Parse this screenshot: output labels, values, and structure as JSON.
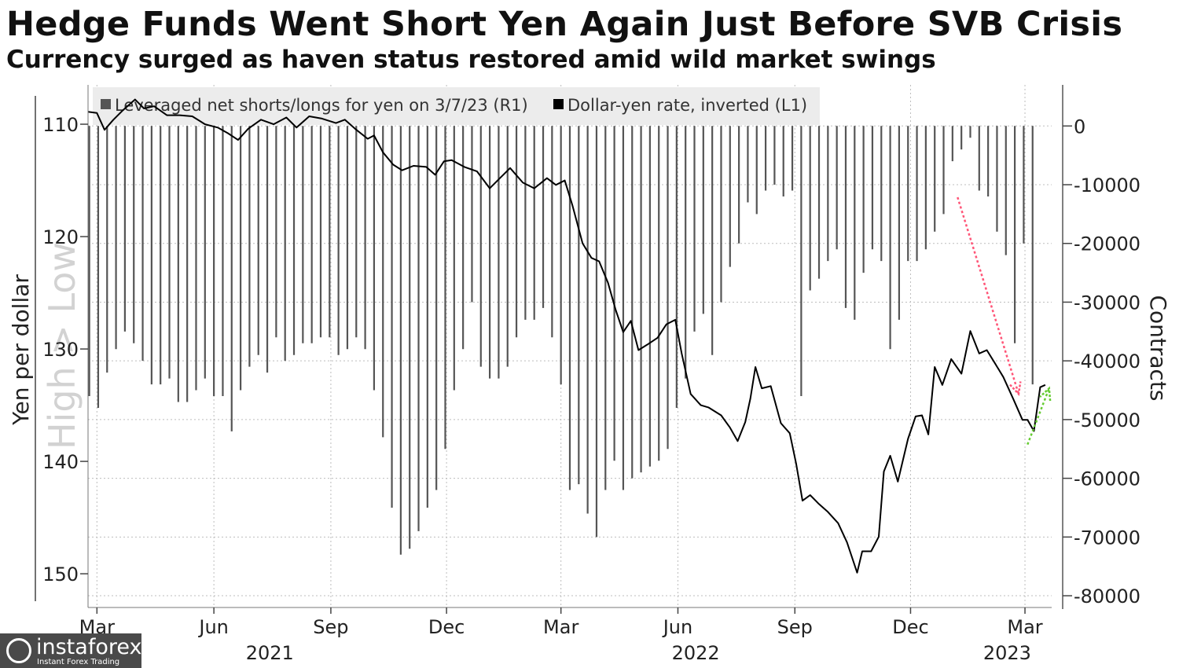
{
  "title": "Hedge Funds Went Short Yen Again Just Before SVB Crisis",
  "subtitle": "Currency surged as haven status restored amid wild market swings",
  "logo": {
    "name": "instaforex",
    "tagline": "Instant Forex Trading"
  },
  "colors": {
    "line": "#000000",
    "bars": "#555555",
    "grid": "#bdbdbd",
    "legend_bg": "#ececec",
    "arrow_down": "#ff5577",
    "arrow_up": "#66cc33"
  },
  "chart_data": {
    "type": "line+bar",
    "left_axis": {
      "title": "Yen per dollar",
      "inverted": true,
      "range": [
        106.5,
        153
      ],
      "ticks": [
        110,
        120,
        130,
        140,
        150
      ]
    },
    "right_axis": {
      "title": "Contracts",
      "range": [
        -82000,
        7000
      ],
      "ticks": [
        0,
        -10000,
        -20000,
        -30000,
        -40000,
        -50000,
        -60000,
        -70000,
        -80000
      ]
    },
    "watermark": "High > Low",
    "x_ticks": [
      "Mar",
      "Jun",
      "Sep",
      "Dec",
      "Mar",
      "Jun",
      "Sep",
      "Dec",
      "Mar"
    ],
    "x_tick_dates": [
      "2021-03-01",
      "2021-06-01",
      "2021-09-01",
      "2021-12-01",
      "2022-03-01",
      "2022-06-01",
      "2022-09-01",
      "2022-12-01",
      "2023-03-01"
    ],
    "x_years": [
      {
        "label": "2021",
        "date": "2021-07-15"
      },
      {
        "label": "2022",
        "date": "2022-06-15"
      },
      {
        "label": "2023",
        "date": "2023-02-15"
      }
    ],
    "x_range": [
      "2021-02-22",
      "2023-03-22"
    ],
    "legend": [
      {
        "label": "Leveraged net shorts/longs for yen on 3/7/23 (R1)",
        "color": "#555555"
      },
      {
        "label": "Dollar-yen rate, inverted (L1)",
        "color": "#000000"
      }
    ],
    "series": [
      {
        "name": "Dollar-yen rate, inverted (L1)",
        "axis": "left",
        "points": [
          [
            "2021-02-22",
            108.9
          ],
          [
            "2021-03-01",
            109.0
          ],
          [
            "2021-03-07",
            110.5
          ],
          [
            "2021-03-14",
            109.6
          ],
          [
            "2021-03-21",
            108.8
          ],
          [
            "2021-03-31",
            107.8
          ],
          [
            "2021-04-07",
            108.6
          ],
          [
            "2021-04-15",
            108.4
          ],
          [
            "2021-04-25",
            109.2
          ],
          [
            "2021-05-05",
            109.2
          ],
          [
            "2021-05-15",
            109.3
          ],
          [
            "2021-05-25",
            110.0
          ],
          [
            "2021-06-04",
            110.3
          ],
          [
            "2021-06-12",
            110.8
          ],
          [
            "2021-06-20",
            111.4
          ],
          [
            "2021-06-28",
            110.4
          ],
          [
            "2021-07-08",
            109.6
          ],
          [
            "2021-07-18",
            110.0
          ],
          [
            "2021-07-28",
            109.4
          ],
          [
            "2021-08-05",
            110.3
          ],
          [
            "2021-08-15",
            109.3
          ],
          [
            "2021-08-25",
            109.5
          ],
          [
            "2021-09-05",
            109.9
          ],
          [
            "2021-09-12",
            109.6
          ],
          [
            "2021-09-20",
            110.4
          ],
          [
            "2021-09-30",
            111.3
          ],
          [
            "2021-10-05",
            111.0
          ],
          [
            "2021-10-12",
            112.5
          ],
          [
            "2021-10-20",
            113.6
          ],
          [
            "2021-10-27",
            114.1
          ],
          [
            "2021-11-05",
            113.7
          ],
          [
            "2021-11-15",
            113.8
          ],
          [
            "2021-11-22",
            114.5
          ],
          [
            "2021-11-29",
            113.3
          ],
          [
            "2021-12-05",
            113.2
          ],
          [
            "2021-12-15",
            113.8
          ],
          [
            "2021-12-25",
            114.2
          ],
          [
            "2022-01-04",
            115.7
          ],
          [
            "2022-01-12",
            114.8
          ],
          [
            "2022-01-20",
            113.9
          ],
          [
            "2022-01-30",
            115.2
          ],
          [
            "2022-02-08",
            115.7
          ],
          [
            "2022-02-18",
            114.8
          ],
          [
            "2022-02-25",
            115.4
          ],
          [
            "2022-03-04",
            115.0
          ],
          [
            "2022-03-10",
            117.2
          ],
          [
            "2022-03-18",
            120.6
          ],
          [
            "2022-03-25",
            121.9
          ],
          [
            "2022-03-31",
            122.2
          ],
          [
            "2022-04-07",
            124.1
          ],
          [
            "2022-04-13",
            126.5
          ],
          [
            "2022-04-19",
            128.5
          ],
          [
            "2022-04-25",
            127.5
          ],
          [
            "2022-05-01",
            130.1
          ],
          [
            "2022-05-08",
            129.6
          ],
          [
            "2022-05-16",
            129.0
          ],
          [
            "2022-05-23",
            127.8
          ],
          [
            "2022-05-30",
            127.4
          ],
          [
            "2022-06-04",
            130.4
          ],
          [
            "2022-06-11",
            134.0
          ],
          [
            "2022-06-19",
            135.0
          ],
          [
            "2022-06-25",
            135.2
          ],
          [
            "2022-07-05",
            135.9
          ],
          [
            "2022-07-12",
            137.0
          ],
          [
            "2022-07-18",
            138.2
          ],
          [
            "2022-07-24",
            136.5
          ],
          [
            "2022-07-28",
            134.4
          ],
          [
            "2022-08-01",
            131.6
          ],
          [
            "2022-08-06",
            133.5
          ],
          [
            "2022-08-13",
            133.3
          ],
          [
            "2022-08-21",
            136.6
          ],
          [
            "2022-08-28",
            137.5
          ],
          [
            "2022-09-02",
            140.2
          ],
          [
            "2022-09-07",
            143.5
          ],
          [
            "2022-09-13",
            143.0
          ],
          [
            "2022-09-20",
            143.8
          ],
          [
            "2022-09-27",
            144.5
          ],
          [
            "2022-10-05",
            145.5
          ],
          [
            "2022-10-12",
            147.2
          ],
          [
            "2022-10-20",
            149.9
          ],
          [
            "2022-10-24",
            148.0
          ],
          [
            "2022-10-31",
            148.0
          ],
          [
            "2022-11-06",
            146.7
          ],
          [
            "2022-11-10",
            140.9
          ],
          [
            "2022-11-15",
            139.5
          ],
          [
            "2022-11-21",
            141.8
          ],
          [
            "2022-11-29",
            138.0
          ],
          [
            "2022-12-05",
            136.0
          ],
          [
            "2022-12-10",
            135.9
          ],
          [
            "2022-12-15",
            137.6
          ],
          [
            "2022-12-20",
            131.6
          ],
          [
            "2022-12-26",
            133.2
          ],
          [
            "2023-01-02",
            130.9
          ],
          [
            "2023-01-10",
            132.2
          ],
          [
            "2023-01-17",
            128.4
          ],
          [
            "2023-01-24",
            130.4
          ],
          [
            "2023-01-30",
            130.1
          ],
          [
            "2023-02-05",
            131.2
          ],
          [
            "2023-02-12",
            132.5
          ],
          [
            "2023-02-20",
            134.5
          ],
          [
            "2023-02-27",
            136.3
          ],
          [
            "2023-03-03",
            136.3
          ],
          [
            "2023-03-08",
            137.3
          ],
          [
            "2023-03-13",
            133.4
          ],
          [
            "2023-03-17",
            133.2
          ]
        ]
      },
      {
        "name": "Leveraged net shorts/longs for yen on 3/7/23 (R1)",
        "axis": "right",
        "points": [
          [
            "2021-02-23",
            -46000
          ],
          [
            "2021-03-02",
            -48000
          ],
          [
            "2021-03-09",
            -42000
          ],
          [
            "2021-03-16",
            -38000
          ],
          [
            "2021-03-23",
            -35000
          ],
          [
            "2021-03-30",
            -37000
          ],
          [
            "2021-04-06",
            -40000
          ],
          [
            "2021-04-13",
            -44000
          ],
          [
            "2021-04-20",
            -44000
          ],
          [
            "2021-04-27",
            -43000
          ],
          [
            "2021-05-04",
            -47000
          ],
          [
            "2021-05-11",
            -47000
          ],
          [
            "2021-05-18",
            -45000
          ],
          [
            "2021-05-25",
            -43000
          ],
          [
            "2021-06-01",
            -46000
          ],
          [
            "2021-06-08",
            -46000
          ],
          [
            "2021-06-15",
            -52000
          ],
          [
            "2021-06-22",
            -45000
          ],
          [
            "2021-06-29",
            -41000
          ],
          [
            "2021-07-06",
            -39000
          ],
          [
            "2021-07-13",
            -42000
          ],
          [
            "2021-07-20",
            -36000
          ],
          [
            "2021-07-27",
            -40000
          ],
          [
            "2021-08-03",
            -39000
          ],
          [
            "2021-08-10",
            -37000
          ],
          [
            "2021-08-17",
            -37000
          ],
          [
            "2021-08-24",
            -36000
          ],
          [
            "2021-08-31",
            -36000
          ],
          [
            "2021-09-07",
            -39000
          ],
          [
            "2021-09-14",
            -38000
          ],
          [
            "2021-09-21",
            -36000
          ],
          [
            "2021-09-28",
            -38000
          ],
          [
            "2021-10-05",
            -45000
          ],
          [
            "2021-10-12",
            -53000
          ],
          [
            "2021-10-19",
            -65000
          ],
          [
            "2021-10-26",
            -73000
          ],
          [
            "2021-11-02",
            -72000
          ],
          [
            "2021-11-09",
            -69000
          ],
          [
            "2021-11-16",
            -65000
          ],
          [
            "2021-11-23",
            -62000
          ],
          [
            "2021-11-30",
            -55000
          ],
          [
            "2021-12-07",
            -45000
          ],
          [
            "2021-12-14",
            -38000
          ],
          [
            "2021-12-21",
            -30000
          ],
          [
            "2021-12-28",
            -41000
          ],
          [
            "2022-01-04",
            -43000
          ],
          [
            "2022-01-11",
            -43000
          ],
          [
            "2022-01-18",
            -41000
          ],
          [
            "2022-01-25",
            -36000
          ],
          [
            "2022-02-01",
            -33000
          ],
          [
            "2022-02-08",
            -33000
          ],
          [
            "2022-02-15",
            -31000
          ],
          [
            "2022-02-22",
            -36000
          ],
          [
            "2022-03-01",
            -44000
          ],
          [
            "2022-03-08",
            -62000
          ],
          [
            "2022-03-15",
            -61000
          ],
          [
            "2022-03-22",
            -66000
          ],
          [
            "2022-03-29",
            -70000
          ],
          [
            "2022-04-05",
            -62000
          ],
          [
            "2022-04-12",
            -57000
          ],
          [
            "2022-04-19",
            -62000
          ],
          [
            "2022-04-26",
            -60000
          ],
          [
            "2022-05-03",
            -59000
          ],
          [
            "2022-05-10",
            -58000
          ],
          [
            "2022-05-17",
            -57000
          ],
          [
            "2022-05-24",
            -55000
          ],
          [
            "2022-05-31",
            -48000
          ],
          [
            "2022-06-07",
            -43000
          ],
          [
            "2022-06-14",
            -35000
          ],
          [
            "2022-06-21",
            -32000
          ],
          [
            "2022-06-28",
            -39000
          ],
          [
            "2022-07-05",
            -30000
          ],
          [
            "2022-07-12",
            -24000
          ],
          [
            "2022-07-19",
            -20000
          ],
          [
            "2022-07-26",
            -13000
          ],
          [
            "2022-08-02",
            -15000
          ],
          [
            "2022-08-09",
            -11000
          ],
          [
            "2022-08-16",
            -10000
          ],
          [
            "2022-08-23",
            -12000
          ],
          [
            "2022-08-30",
            -11000
          ],
          [
            "2022-09-06",
            -46000
          ],
          [
            "2022-09-13",
            -28000
          ],
          [
            "2022-09-20",
            -26000
          ],
          [
            "2022-09-27",
            -23000
          ],
          [
            "2022-10-04",
            -21000
          ],
          [
            "2022-10-11",
            -31000
          ],
          [
            "2022-10-18",
            -33000
          ],
          [
            "2022-10-25",
            -25000
          ],
          [
            "2022-11-01",
            -21000
          ],
          [
            "2022-11-08",
            -23000
          ],
          [
            "2022-11-15",
            -38000
          ],
          [
            "2022-11-22",
            -33000
          ],
          [
            "2022-11-29",
            -23000
          ],
          [
            "2022-12-06",
            -23000
          ],
          [
            "2022-12-13",
            -21000
          ],
          [
            "2022-12-20",
            -18000
          ],
          [
            "2022-12-27",
            -15000
          ],
          [
            "2023-01-03",
            -6000
          ],
          [
            "2023-01-10",
            -4000
          ],
          [
            "2023-01-17",
            -2000
          ],
          [
            "2023-01-24",
            -11000
          ],
          [
            "2023-01-31",
            -12000
          ],
          [
            "2023-02-07",
            -18000
          ],
          [
            "2023-02-14",
            -22000
          ],
          [
            "2023-02-21",
            -37000
          ],
          [
            "2023-02-28",
            -20000
          ],
          [
            "2023-03-07",
            -44000
          ]
        ]
      }
    ],
    "annotations": [
      {
        "type": "arrow",
        "color": "#ff5577",
        "from": [
          "2023-01-07",
          116.5
        ],
        "to": [
          "2023-02-24",
          134.0
        ]
      },
      {
        "type": "arrow",
        "color": "#66cc33",
        "from": [
          "2023-03-03",
          138.5
        ],
        "to": [
          "2023-03-20",
          133.5
        ]
      }
    ]
  }
}
